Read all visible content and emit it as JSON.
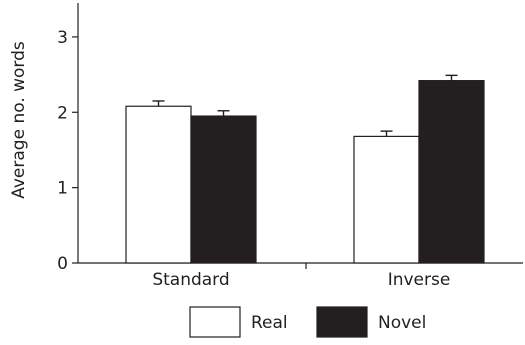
{
  "chart_data": {
    "type": "bar",
    "title": "",
    "xlabel": "",
    "ylabel": "Average no. words",
    "ylim": [
      0,
      3.4
    ],
    "yticks": [
      0,
      1,
      2,
      3
    ],
    "categories": [
      "Standard",
      "Inverse"
    ],
    "series": [
      {
        "name": "Real",
        "values": [
          2.08,
          1.68
        ],
        "errors": [
          0.07,
          0.07
        ],
        "fill": "#ffffff"
      },
      {
        "name": "Novel",
        "values": [
          1.95,
          2.42
        ],
        "errors": [
          0.07,
          0.07
        ],
        "fill": "#231f20"
      }
    ],
    "legend_position": "bottom",
    "grid": false,
    "colors": {
      "axis": "#231f20",
      "bar_outline": "#231f20"
    }
  }
}
